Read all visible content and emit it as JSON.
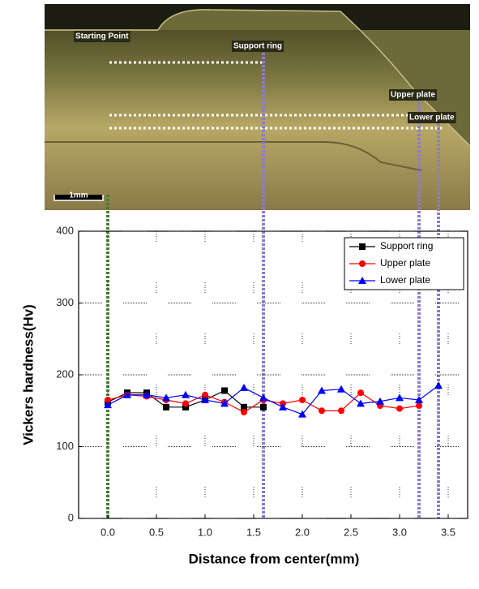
{
  "chart_data": {
    "type": "line",
    "x_label": "Distance from center(mm)",
    "y_label": "Vickers hardness(Hv)",
    "xlim": [
      -0.3,
      3.7
    ],
    "ylim": [
      0,
      400
    ],
    "xticks": [
      {
        "value": 0,
        "label": "0.0"
      },
      0.5,
      {
        "value": 1,
        "label": "1.0"
      },
      1.5,
      {
        "value": 2,
        "label": "2.0"
      },
      2.5,
      {
        "value": 3,
        "label": "3.0"
      },
      3.5
    ],
    "yticks": [
      0,
      100,
      200,
      300,
      400
    ],
    "grid": true,
    "legend": "top-right",
    "series": [
      {
        "name": "Support ring",
        "color": "#000000",
        "marker": "square",
        "x": [
          0,
          0.2,
          0.4,
          0.6,
          0.8,
          1.0,
          1.2,
          1.4,
          1.6
        ],
        "values": [
          162,
          175,
          175,
          155,
          155,
          165,
          178,
          155,
          155
        ]
      },
      {
        "name": "Upper plate",
        "color": "#ff0000",
        "marker": "circle",
        "x": [
          0,
          0.2,
          0.4,
          0.6,
          0.8,
          1.0,
          1.2,
          1.4,
          1.6,
          1.8,
          2.0,
          2.2,
          2.4,
          2.6,
          2.8,
          3.0,
          3.2
        ],
        "values": [
          165,
          172,
          170,
          165,
          160,
          172,
          162,
          148,
          165,
          160,
          165,
          150,
          150,
          175,
          157,
          153,
          157
        ]
      },
      {
        "name": "Lower plate",
        "color": "#0000ff",
        "marker": "triangle",
        "x": [
          0,
          0.2,
          0.4,
          0.6,
          0.8,
          1.0,
          1.2,
          1.4,
          1.6,
          1.8,
          2.0,
          2.2,
          2.4,
          2.6,
          2.8,
          3.0,
          3.2,
          3.4
        ],
        "values": [
          158,
          172,
          172,
          168,
          172,
          165,
          160,
          182,
          168,
          155,
          145,
          178,
          180,
          160,
          163,
          168,
          165,
          185
        ]
      }
    ],
    "reference_lines": [
      {
        "label": "Starting Point",
        "x": 0,
        "color": "#4a7a3a"
      },
      {
        "label": "Support ring",
        "x": 1.6,
        "color": "#8c7ccc"
      },
      {
        "label": "Upper plate",
        "x": 3.2,
        "color": "#8c7ccc"
      },
      {
        "label": "Lower plate",
        "x": 3.4,
        "color": "#8c7ccc"
      }
    ],
    "scale_bar": "1mm"
  }
}
